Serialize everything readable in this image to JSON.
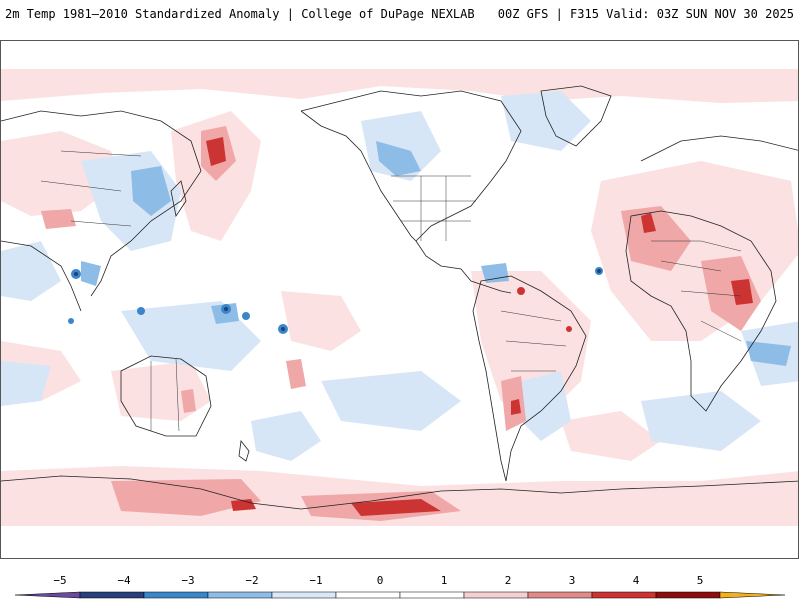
{
  "header": {
    "title_left": "2m Temp 1981–2010 Standardized Anomaly | College of DuPage NEXLAB",
    "title_right": "00Z GFS | F315 Valid: 03Z SUN NOV 30 2025"
  },
  "map": {
    "variable": "2m Temp Standardized Anomaly",
    "icons": [
      "world-map"
    ]
  },
  "legend": {
    "tick_labels": [
      "−5",
      "−4",
      "−3",
      "−2",
      "−1",
      "0",
      "1",
      "2",
      "3",
      "4",
      "5"
    ],
    "colors": [
      "#6a4c9c",
      "#273f7a",
      "#3a86c8",
      "#8dbde6",
      "#d9e8f6",
      "#ffffff",
      "#ffffff",
      "#f6d0d0",
      "#e08a8a",
      "#cc3333",
      "#8c0d0d",
      "#f2b01e"
    ]
  }
}
